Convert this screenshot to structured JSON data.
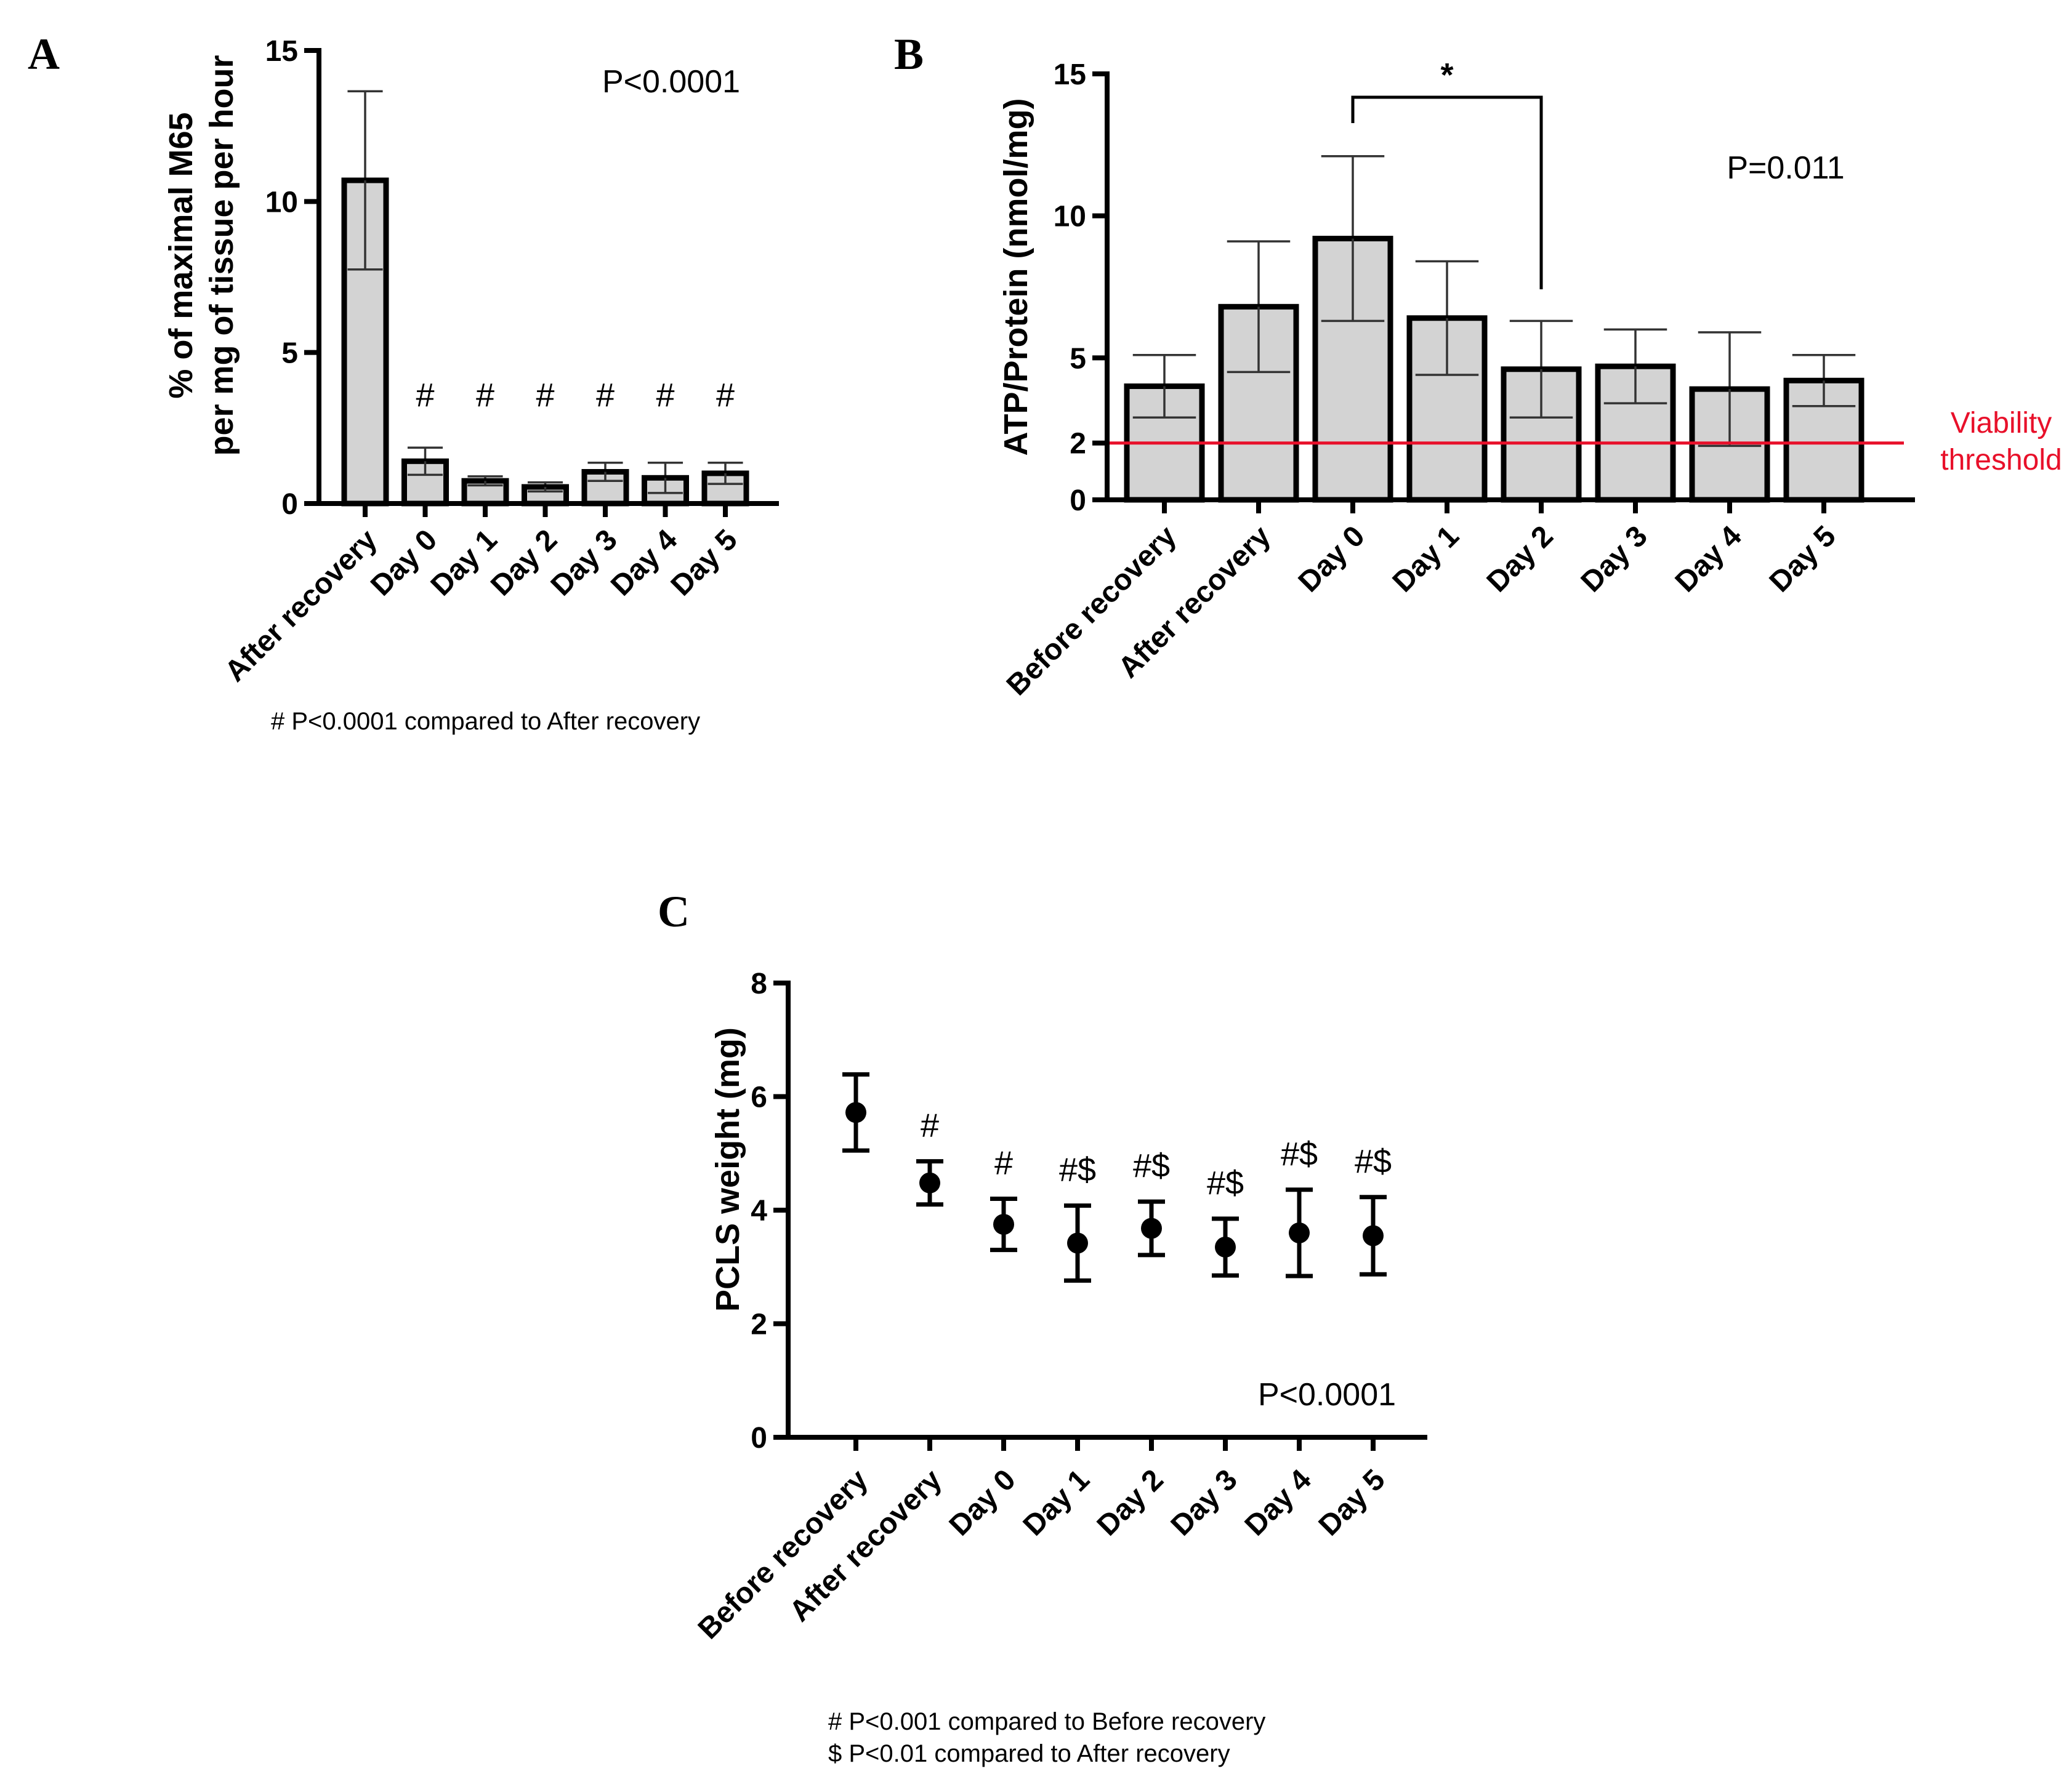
{
  "chart_data": [
    {
      "type": "bar",
      "panel": "A",
      "ylabel_lines": [
        "% of maximal M65",
        "per mg of tissue per hour"
      ],
      "ylim": [
        0,
        15
      ],
      "yticks": [
        0,
        5,
        10,
        15
      ],
      "categories": [
        "After recovery",
        "Day 0",
        "Day 1",
        "Day 2",
        "Day 3",
        "Day 4",
        "Day 5"
      ],
      "values": [
        10.7,
        1.4,
        0.75,
        0.55,
        1.05,
        0.85,
        1.0
      ],
      "errors": [
        2.95,
        0.45,
        0.15,
        0.15,
        0.3,
        0.5,
        0.35
      ],
      "sig_marks": [
        "",
        "#",
        "#",
        "#",
        "#",
        "#",
        "#"
      ],
      "p_value": "P<0.0001",
      "footnotes": [
        "# P<0.0001 compared to After recovery"
      ]
    },
    {
      "type": "bar",
      "panel": "B",
      "ylabel": "ATP/Protein (nmol/mg)",
      "ylim": [
        0,
        15
      ],
      "yticks": [
        0,
        2,
        5,
        10,
        15
      ],
      "categories": [
        "Before recovery",
        "After recovery",
        "Day 0",
        "Day 1",
        "Day 2",
        "Day 3",
        "Day 4",
        "Day 5"
      ],
      "values": [
        4.0,
        6.8,
        9.2,
        6.4,
        4.6,
        4.7,
        3.9,
        4.2
      ],
      "errors": [
        1.1,
        2.3,
        2.9,
        2.0,
        1.7,
        1.3,
        2.0,
        0.9
      ],
      "threshold": {
        "value": 2,
        "label_lines": [
          "Viability",
          "threshold"
        ],
        "color": "#e8102a"
      },
      "bracket": {
        "from": "Day 0",
        "to": "Day 2",
        "label": "*"
      },
      "p_value": "P=0.011"
    },
    {
      "type": "scatter",
      "panel": "C",
      "ylabel": "PCLS weight (mg)",
      "ylim": [
        0,
        8
      ],
      "yticks": [
        0,
        2,
        4,
        6,
        8
      ],
      "categories": [
        "Before recovery",
        "After recovery",
        "Day 0",
        "Day 1",
        "Day 2",
        "Day 3",
        "Day 4",
        "Day 5"
      ],
      "values": [
        5.72,
        4.48,
        3.75,
        3.42,
        3.68,
        3.35,
        3.6,
        3.55
      ],
      "errors": [
        0.67,
        0.38,
        0.45,
        0.66,
        0.47,
        0.5,
        0.76,
        0.68
      ],
      "sig_marks": [
        "",
        "#",
        "#",
        "#$",
        "#$",
        "#$",
        "#$",
        "#$"
      ],
      "p_value": "P<0.0001",
      "footnotes": [
        "# P<0.001 compared to Before recovery",
        "$ P<0.01 compared to After recovery"
      ]
    }
  ]
}
